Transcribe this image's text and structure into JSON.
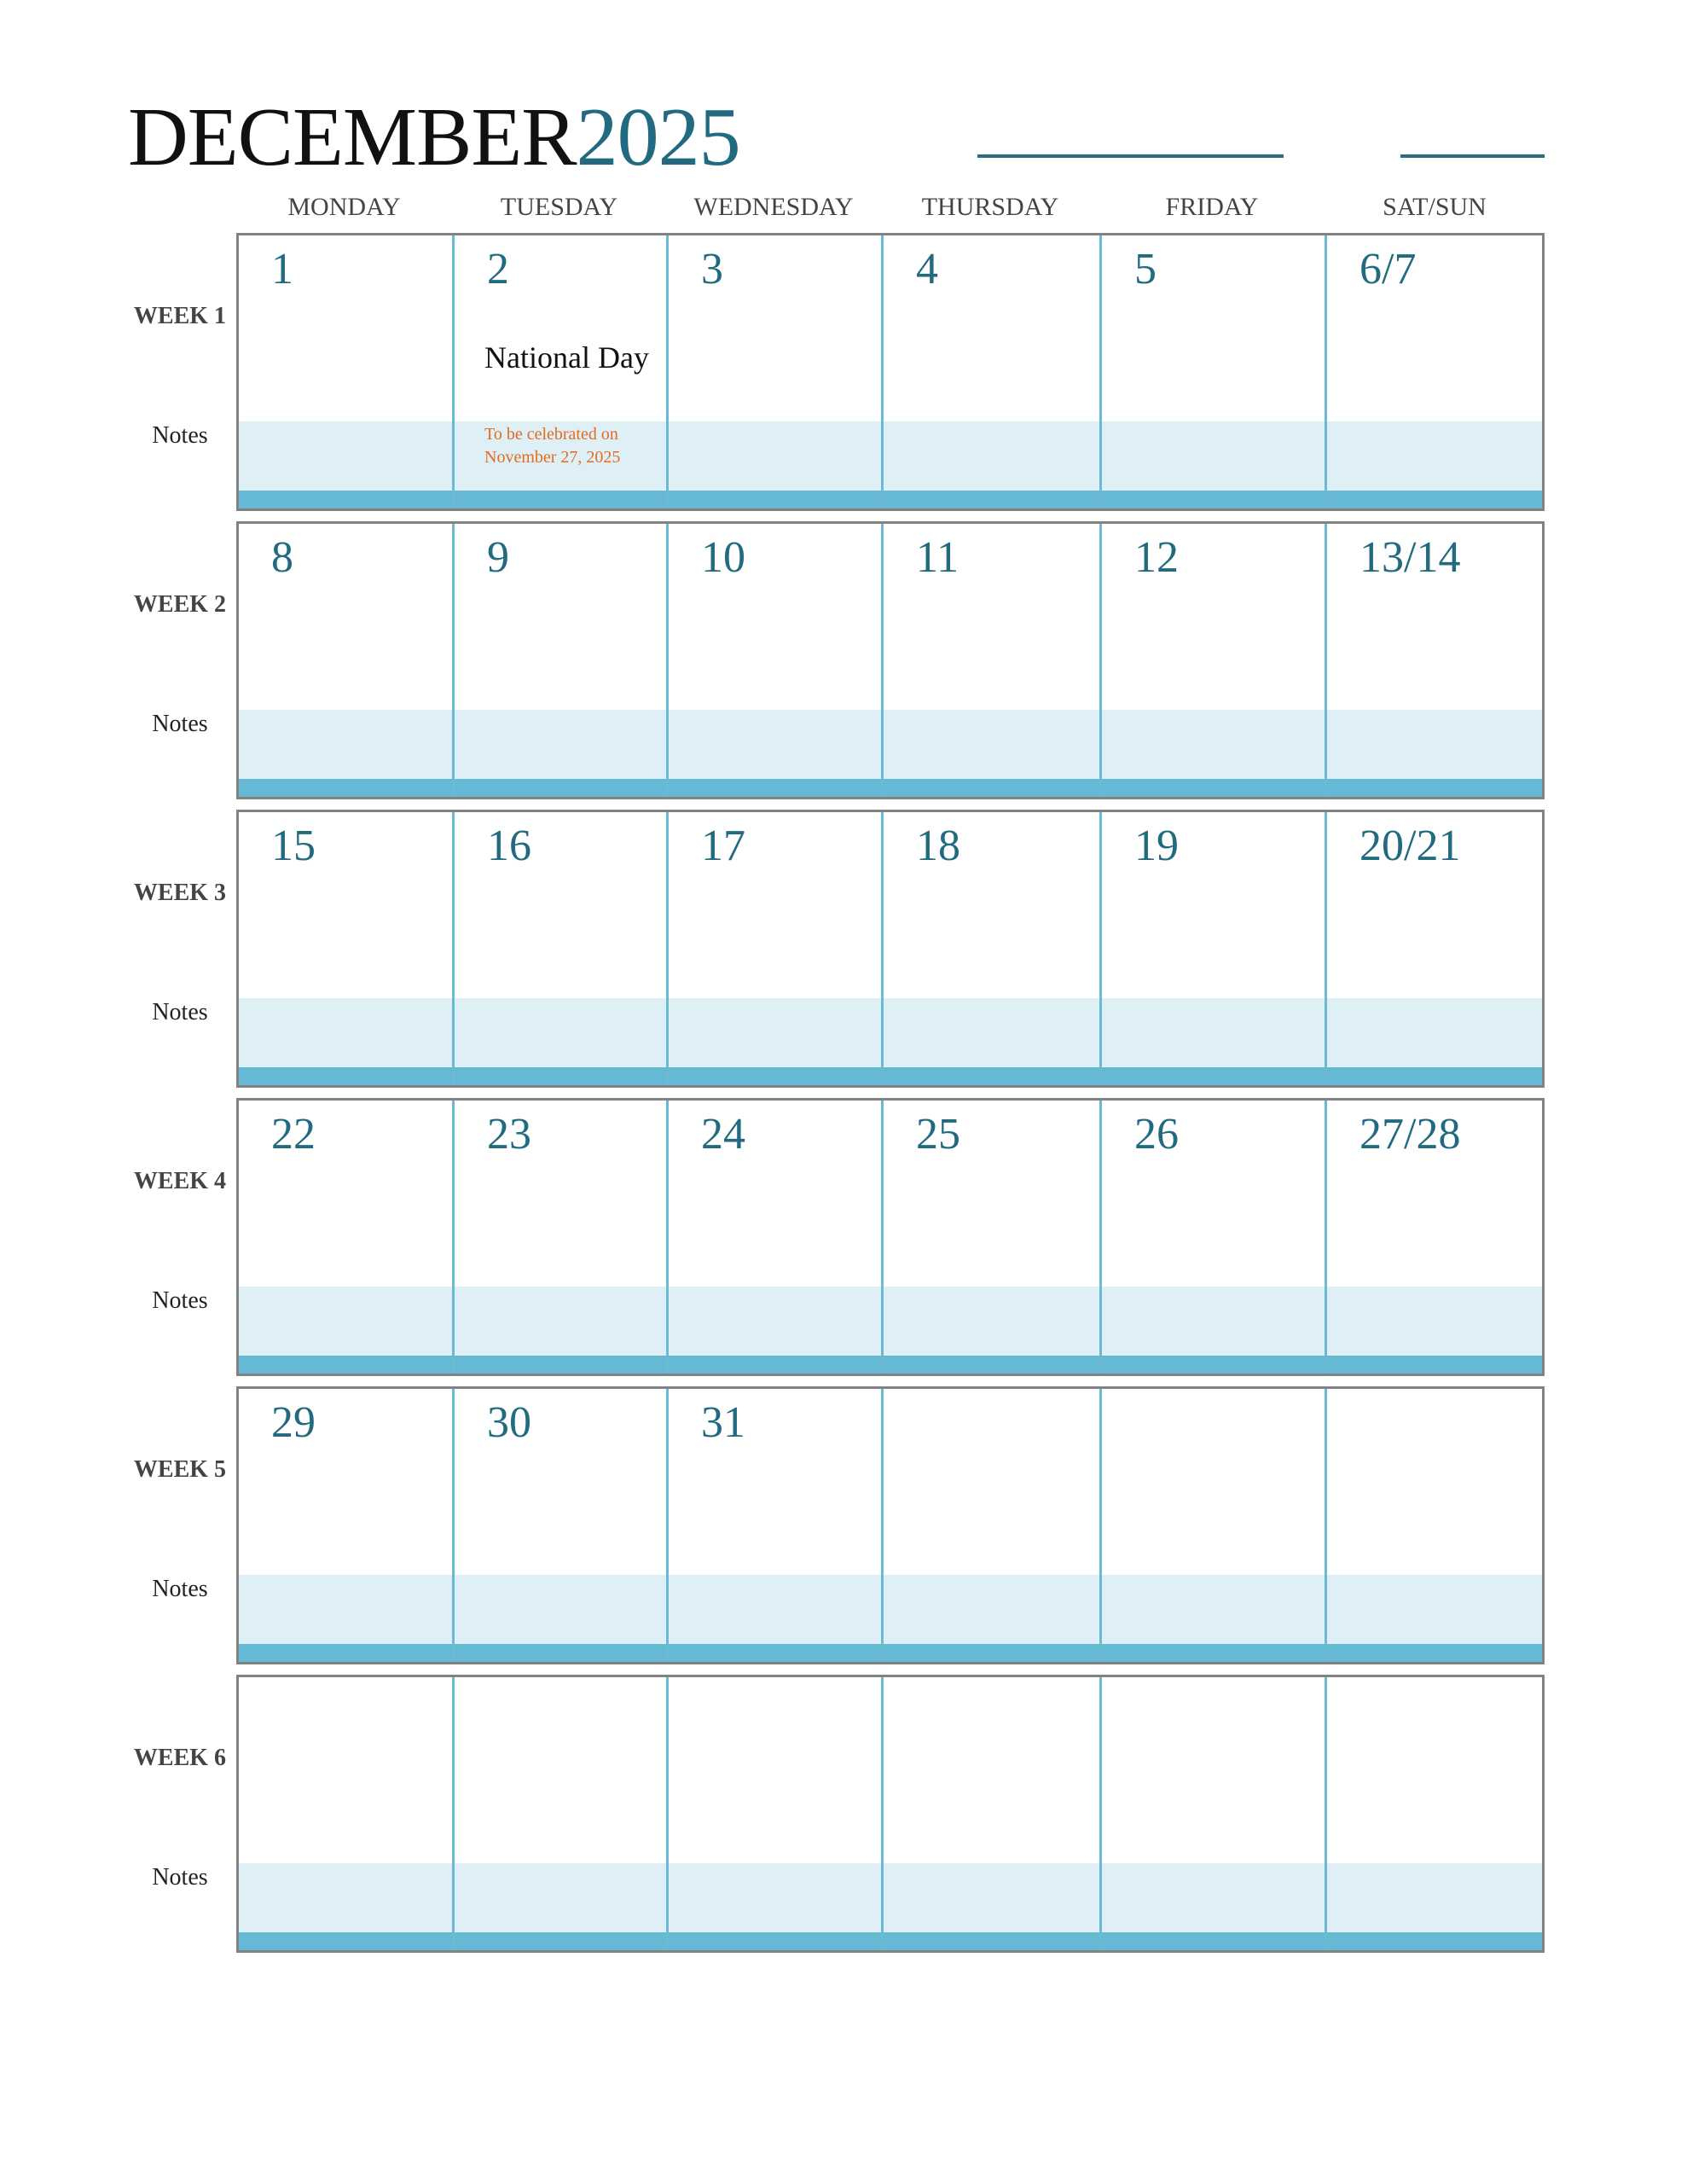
{
  "header": {
    "month": "DECEMBER",
    "year": "2025"
  },
  "colors": {
    "accent": "#216a80",
    "notes_band": "#dfeff6",
    "week_bar": "#65b9d5",
    "note_text": "#e36c1f"
  },
  "days_of_week": [
    "MONDAY",
    "TUESDAY",
    "WEDNESDAY",
    "THURSDAY",
    "FRIDAY",
    "SAT/SUN"
  ],
  "notes_label": "Notes",
  "weeks": [
    {
      "label": "WEEK 1",
      "days": [
        "1",
        "2",
        "3",
        "4",
        "5",
        "6/7"
      ]
    },
    {
      "label": "WEEK 2",
      "days": [
        "8",
        "9",
        "10",
        "11",
        "12",
        "13/14"
      ]
    },
    {
      "label": "WEEK 3",
      "days": [
        "15",
        "16",
        "17",
        "18",
        "19",
        "20/21"
      ]
    },
    {
      "label": "WEEK 4",
      "days": [
        "22",
        "23",
        "24",
        "25",
        "26",
        "27/28"
      ]
    },
    {
      "label": "WEEK 5",
      "days": [
        "29",
        "30",
        "31",
        "",
        "",
        ""
      ]
    },
    {
      "label": "WEEK 6",
      "days": [
        "",
        "",
        "",
        "",
        "",
        ""
      ]
    }
  ],
  "events": [
    {
      "week": 0,
      "day": 1,
      "title": "National Day",
      "note_line1": "To be celebrated on",
      "note_line2": "November 27, 2025"
    }
  ]
}
